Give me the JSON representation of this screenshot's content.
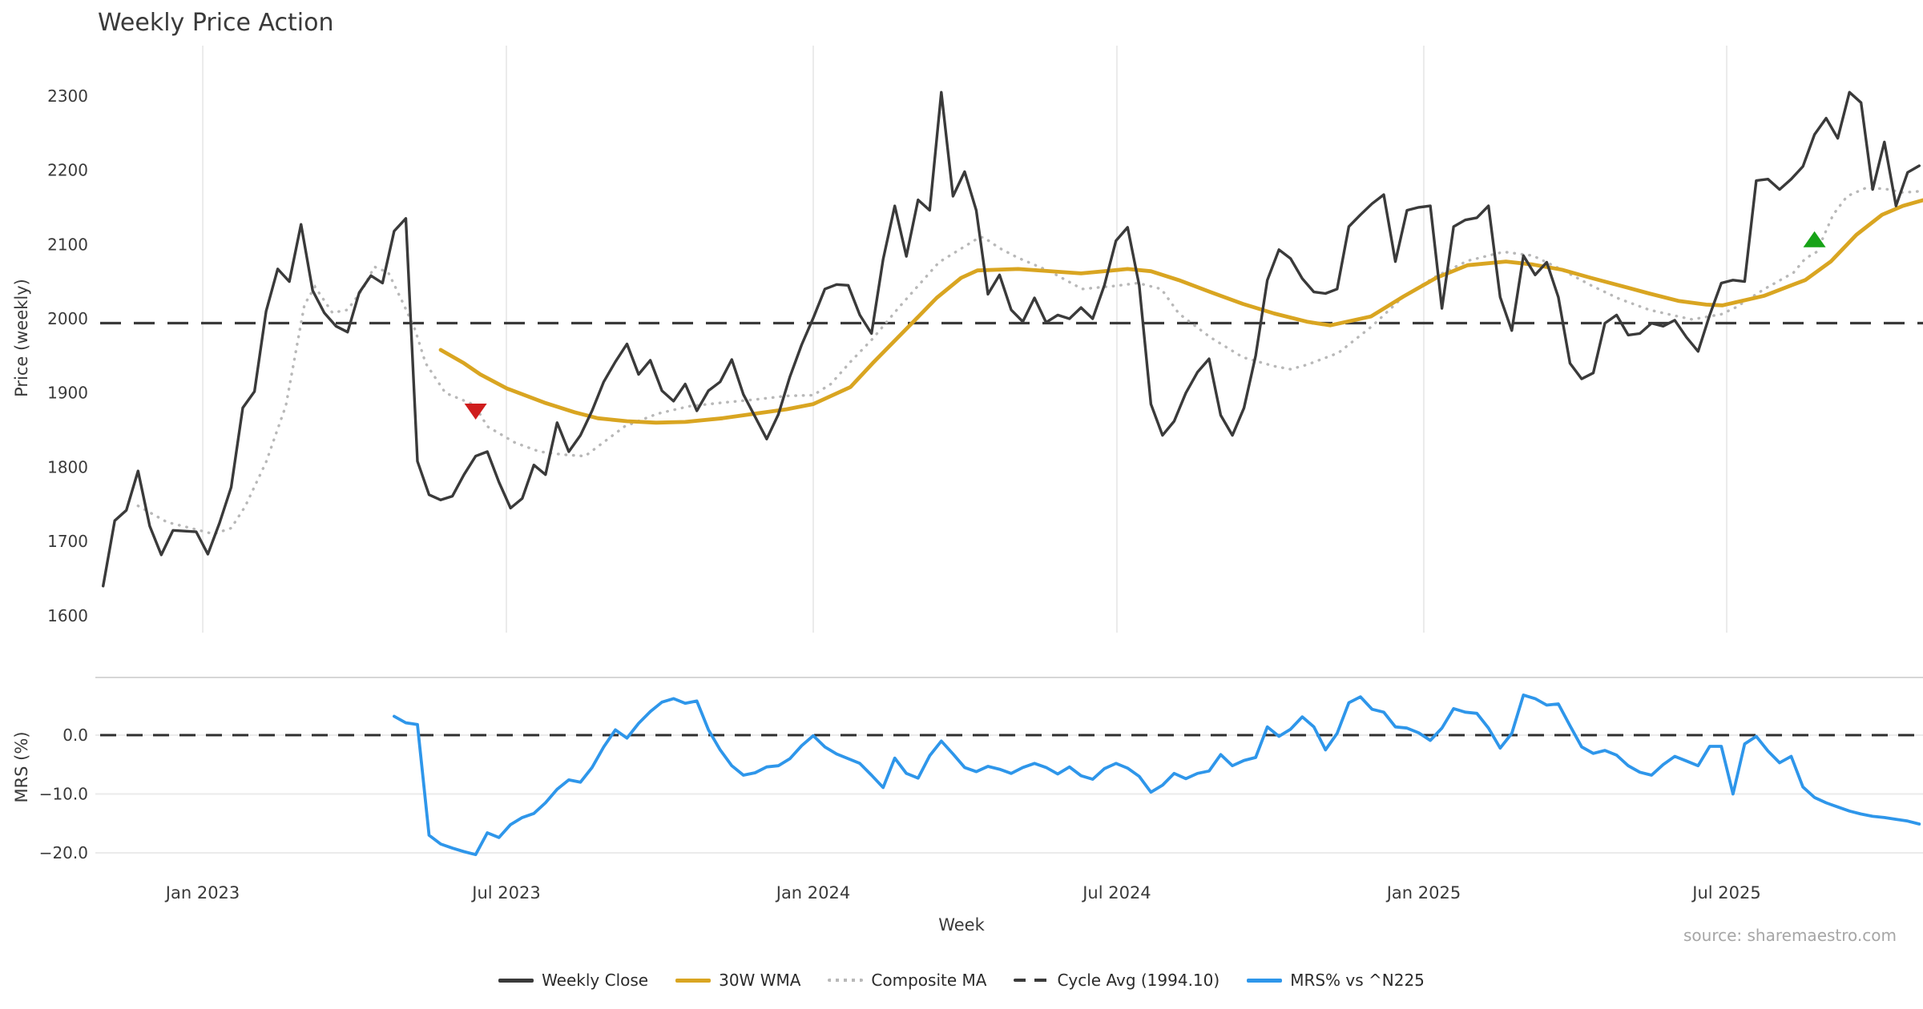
{
  "title": "Weekly Price Action",
  "axis": {
    "price_label": "Price (weekly)",
    "mrs_label": "MRS (%)",
    "x_label": "Week"
  },
  "source_note": "source: sharemaestro.com",
  "legend": {
    "items": [
      {
        "label": "Weekly Close",
        "swatch": "solid-dark-line"
      },
      {
        "label": "30W WMA",
        "swatch": "solid-gold-line"
      },
      {
        "label": "Composite MA",
        "swatch": "dotted-gray-line"
      },
      {
        "label": "Cycle Avg (1994.10)",
        "swatch": "dashed-dark-line"
      },
      {
        "label": "MRS% vs ^N225",
        "swatch": "solid-blue-line"
      }
    ]
  },
  "colors": {
    "close": "#3a3a3a",
    "wma": "#d9a521",
    "composite": "#b8b8b8",
    "cycle": "#3a3a3a",
    "mrs": "#2e96ea",
    "grid": "#ebebeb",
    "spine": "#d6d6d6",
    "tick_text": "#3a3a3a",
    "marker_down": "#cf1d1d",
    "marker_up": "#17a317"
  },
  "chart_data": {
    "type": "line",
    "title": "Weekly Price Action",
    "x_axis": {
      "label": "Week",
      "unit": "weekly, week 0 = late Oct 2022",
      "tick_labels": [
        "Jan 2023",
        "Jul 2023",
        "Jan 2024",
        "Jul 2024",
        "Jan 2025",
        "Jul 2025"
      ],
      "tick_weeks": [
        8.56,
        34.64,
        61.0,
        87.08,
        113.44,
        139.46
      ]
    },
    "price_panel": {
      "ylabel": "Price (weekly)",
      "ylim": [
        1575,
        2370
      ],
      "yticks": [
        1600,
        1700,
        1800,
        1900,
        2000,
        2100,
        2200,
        2300
      ],
      "grid": "vertical-only",
      "cycle_avg": 1994.1,
      "series": [
        {
          "name": "Weekly Close",
          "style": "solid",
          "start_week": 0,
          "values": [
            1640,
            1728,
            1742,
            1795,
            1721,
            1682,
            1715,
            1714,
            1713,
            1683,
            1725,
            1773,
            1880,
            1902,
            2010,
            2067,
            2050,
            2127,
            2038,
            2008,
            1990,
            1982,
            2035,
            2058,
            2048,
            2118,
            2135,
            1808,
            1763,
            1756,
            1761,
            1790,
            1815,
            1821,
            1780,
            1745,
            1758,
            1803,
            1790,
            1860,
            1821,
            1843,
            1876,
            1915,
            1942,
            1966,
            1925,
            1944,
            1903,
            1889,
            1912,
            1876,
            1903,
            1915,
            1945,
            1898,
            1868,
            1838,
            1871,
            1922,
            1965,
            2001,
            2040,
            2046,
            2045,
            2005,
            1980,
            2080,
            2152,
            2084,
            2160,
            2146,
            2305,
            2165,
            2198,
            2146,
            2033,
            2059,
            2012,
            1996,
            2028,
            1995,
            2005,
            2000,
            2015,
            2000,
            2045,
            2105,
            2123,
            2045,
            1885,
            1843,
            1862,
            1900,
            1928,
            1946,
            1870,
            1843,
            1880,
            1950,
            2052,
            2093,
            2081,
            2054,
            2036,
            2034,
            2040,
            2124,
            2140,
            2155,
            2167,
            2077,
            2146,
            2150,
            2152,
            2014,
            2124,
            2133,
            2136,
            2152,
            2029,
            1984,
            2085,
            2059,
            2076,
            2029,
            1940,
            1919,
            1927,
            1994,
            2005,
            1978,
            1980,
            1994,
            1990,
            1998,
            1975,
            1956,
            2005,
            2048,
            2052,
            2050,
            2186,
            2188,
            2174,
            2188,
            2205,
            2248,
            2270,
            2243,
            2305,
            2291,
            2174,
            2238,
            2152,
            2197,
            2206
          ]
        },
        {
          "name": "30W WMA",
          "style": "solid",
          "points": [
            [
              29,
              1958
            ],
            [
              31,
              1940
            ],
            [
              32.4,
              1925
            ],
            [
              34.7,
              1906
            ],
            [
              37.9,
              1887
            ],
            [
              40.5,
              1874
            ],
            [
              42.5,
              1866
            ],
            [
              45,
              1862
            ],
            [
              47.5,
              1860
            ],
            [
              50,
              1861
            ],
            [
              53.2,
              1866
            ],
            [
              55.9,
              1872
            ],
            [
              58.7,
              1878
            ],
            [
              61,
              1885
            ],
            [
              64.2,
              1908
            ],
            [
              66.1,
              1940
            ],
            [
              69.6,
              1996
            ],
            [
              71.6,
              2028
            ],
            [
              73.7,
              2055
            ],
            [
              75.1,
              2065
            ],
            [
              78.6,
              2067
            ],
            [
              84,
              2061
            ],
            [
              88,
              2067
            ],
            [
              90,
              2064
            ],
            [
              92.4,
              2052
            ],
            [
              95.1,
              2036
            ],
            [
              97.9,
              2020
            ],
            [
              100.6,
              2007
            ],
            [
              103.4,
              1996
            ],
            [
              105.4,
              1991
            ],
            [
              108.9,
              2003
            ],
            [
              111.7,
              2030
            ],
            [
              114.5,
              2055
            ],
            [
              117.2,
              2072
            ],
            [
              120.5,
              2077
            ],
            [
              122.8,
              2073
            ],
            [
              125.3,
              2066
            ],
            [
              127.8,
              2055
            ],
            [
              130.2,
              2045
            ],
            [
              132.8,
              2034
            ],
            [
              135.3,
              2024
            ],
            [
              137.7,
              2019
            ],
            [
              139.1,
              2018
            ],
            [
              140.2,
              2022
            ],
            [
              142.7,
              2031
            ],
            [
              145.2,
              2046
            ],
            [
              146.2,
              2052
            ],
            [
              148.4,
              2077
            ],
            [
              150.6,
              2113
            ],
            [
              152.8,
              2140
            ],
            [
              154.6,
              2152
            ],
            [
              156.4,
              2160
            ]
          ]
        },
        {
          "name": "Composite MA",
          "style": "dotted",
          "points": [
            [
              3,
              1748
            ],
            [
              5.5,
              1726
            ],
            [
              7.3,
              1719
            ],
            [
              9.5,
              1710
            ],
            [
              11,
              1718
            ],
            [
              12.2,
              1747
            ],
            [
              14,
              1807
            ],
            [
              15.7,
              1883
            ],
            [
              17.3,
              2019
            ],
            [
              18.2,
              2043
            ],
            [
              19.7,
              2008
            ],
            [
              21,
              2012
            ],
            [
              22.3,
              2040
            ],
            [
              23.3,
              2070
            ],
            [
              24.5,
              2062
            ],
            [
              25.8,
              2020
            ],
            [
              26.8,
              1985
            ],
            [
              27.7,
              1940
            ],
            [
              29.4,
              1900
            ],
            [
              31.9,
              1884
            ],
            [
              33,
              1855
            ],
            [
              35.4,
              1833
            ],
            [
              37.5,
              1821
            ],
            [
              39.5,
              1817
            ],
            [
              41.4,
              1815
            ],
            [
              44.8,
              1855
            ],
            [
              47.6,
              1872
            ],
            [
              50.3,
              1882
            ],
            [
              53.2,
              1887
            ],
            [
              55.9,
              1891
            ],
            [
              58.7,
              1896
            ],
            [
              61,
              1897
            ],
            [
              62.5,
              1912
            ],
            [
              64.2,
              1942
            ],
            [
              66.1,
              1973
            ],
            [
              68.4,
              2016
            ],
            [
              71.8,
              2076
            ],
            [
              75.1,
              2108
            ],
            [
              75.6,
              2110
            ],
            [
              77,
              2095
            ],
            [
              78.6,
              2082
            ],
            [
              81.3,
              2064
            ],
            [
              84.1,
              2040
            ],
            [
              86.8,
              2044
            ],
            [
              88.9,
              2048
            ],
            [
              90.9,
              2040
            ],
            [
              92.4,
              2007
            ],
            [
              95.1,
              1975
            ],
            [
              97.9,
              1948
            ],
            [
              100.6,
              1936
            ],
            [
              102,
              1932
            ],
            [
              103.4,
              1938
            ],
            [
              106.1,
              1954
            ],
            [
              109,
              1990
            ],
            [
              111.7,
              2030
            ],
            [
              114.5,
              2057
            ],
            [
              117.2,
              2078
            ],
            [
              120.3,
              2090
            ],
            [
              122.8,
              2085
            ],
            [
              125.3,
              2066
            ],
            [
              127.8,
              2045
            ],
            [
              130.2,
              2027
            ],
            [
              132.8,
              2012
            ],
            [
              135.3,
              2003
            ],
            [
              136.5,
              1999
            ],
            [
              139,
              2006
            ],
            [
              140.2,
              2015
            ],
            [
              142.7,
              2040
            ],
            [
              145.2,
              2062
            ],
            [
              146.2,
              2081
            ],
            [
              147.2,
              2090
            ],
            [
              148.6,
              2140
            ],
            [
              149.8,
              2165
            ],
            [
              151.4,
              2176
            ],
            [
              153,
              2175
            ],
            [
              154.6,
              2170
            ],
            [
              156.4,
              2172
            ]
          ]
        }
      ],
      "markers": [
        {
          "shape": "triangle-down",
          "week": 32,
          "value": 1876,
          "color_key": "marker_down"
        },
        {
          "shape": "triangle-up",
          "week": 147,
          "value": 2106,
          "color_key": "marker_up"
        }
      ]
    },
    "mrs_panel": {
      "ylabel": "MRS (%)",
      "ylim": [
        -22,
        9.8
      ],
      "yticks": [
        [
          0,
          "0.0"
        ],
        [
          -10,
          "−10.0"
        ],
        [
          -20,
          "−20.0"
        ]
      ],
      "zero_line": "dashed",
      "series": [
        {
          "name": "MRS% vs ^N225",
          "style": "solid",
          "start_week": 25,
          "values": [
            3.2,
            2.1,
            1.8,
            -17.0,
            -18.5,
            -19.2,
            -19.8,
            -20.3,
            -16.6,
            -17.4,
            -15.2,
            -14.0,
            -13.3,
            -11.5,
            -9.2,
            -7.6,
            -8.0,
            -5.5,
            -2.0,
            0.9,
            -0.5,
            2.0,
            4.0,
            5.6,
            6.2,
            5.4,
            5.8,
            0.9,
            -2.5,
            -5.2,
            -6.8,
            -6.4,
            -5.4,
            -5.2,
            -4.0,
            -1.8,
            -0.1,
            -2.0,
            -3.2,
            -4.0,
            -4.8,
            -6.8,
            -8.9,
            -3.9,
            -6.5,
            -7.3,
            -3.5,
            -1.0,
            -3.2,
            -5.5,
            -6.2,
            -5.3,
            -5.8,
            -6.5,
            -5.5,
            -4.8,
            -5.5,
            -6.6,
            -5.4,
            -6.9,
            -7.5,
            -5.7,
            -4.8,
            -5.6,
            -7.0,
            -9.7,
            -8.5,
            -6.5,
            -7.4,
            -6.5,
            -6.1,
            -3.3,
            -5.2,
            -4.3,
            -3.8,
            1.4,
            -0.2,
            1.0,
            3.1,
            1.4,
            -2.5,
            0.3,
            5.5,
            6.5,
            4.4,
            3.9,
            1.4,
            1.2,
            0.4,
            -0.9,
            1.2,
            4.5,
            3.9,
            3.7,
            1.2,
            -2.2,
            0.3,
            6.8,
            6.2,
            5.1,
            5.3,
            1.6,
            -2.0,
            -3.1,
            -2.6,
            -3.4,
            -5.2,
            -6.3,
            -6.8,
            -5.0,
            -3.6,
            -4.4,
            -5.2,
            -1.9,
            -1.9,
            -10.0,
            -1.5,
            -0.2,
            -2.7,
            -4.7,
            -3.6,
            -8.8,
            -10.6,
            -11.5,
            -12.2,
            -12.9,
            -13.4,
            -13.8,
            -14.0,
            -14.3,
            -14.6,
            -15.1
          ]
        }
      ]
    }
  }
}
